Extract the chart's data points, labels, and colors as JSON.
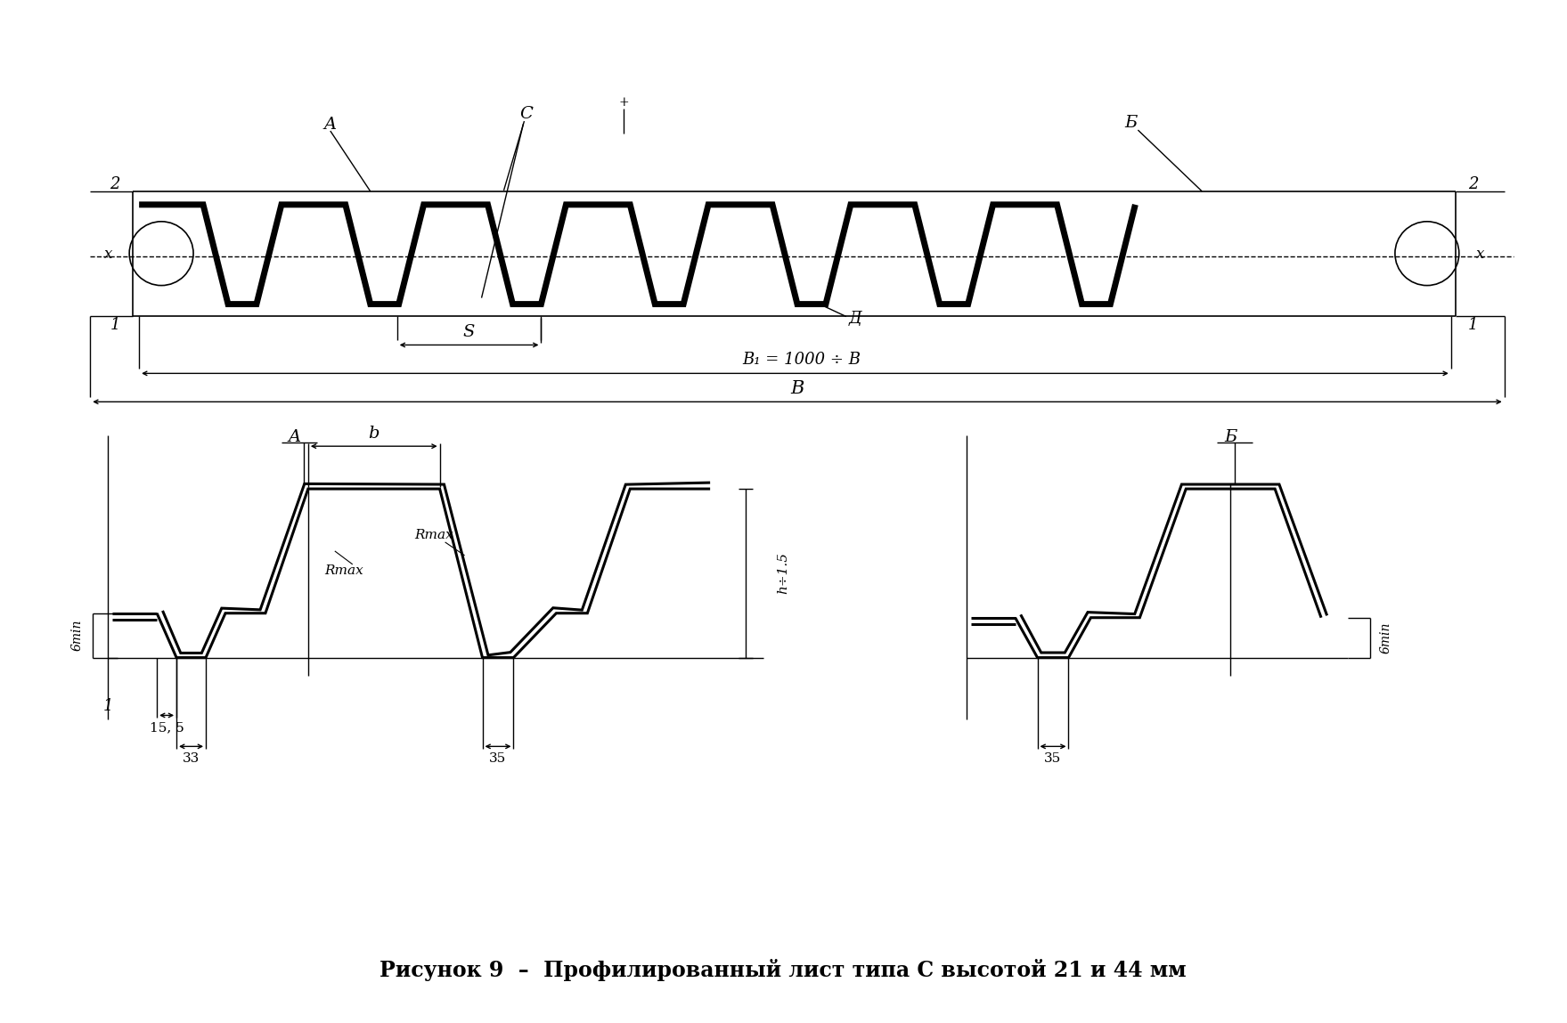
{
  "bg_color": "#ffffff",
  "title": "Рисунок 9  –  Профилированный лист типа C высотой 21 и 44 мм",
  "label_B1": "B₁ = 1000 ÷ B",
  "label_h15": "h÷1.5"
}
